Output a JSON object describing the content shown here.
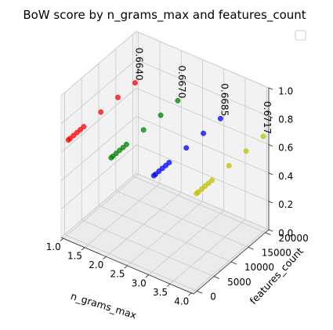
{
  "chart_data": {
    "type": "scatter",
    "projection": "3d",
    "title": "BoW score by n_grams_max and features_count",
    "xlabel": "n_grams_max",
    "ylabel": "features_count",
    "zlabel": "",
    "xlim": [
      0.95,
      4.05
    ],
    "ylim": [
      -1000,
      21000
    ],
    "zlim": [
      0,
      1
    ],
    "xticks": [
      "1.0",
      "1.5",
      "2.0",
      "2.5",
      "3.0",
      "3.5",
      "4.0"
    ],
    "yticks": [
      "0",
      "5000",
      "10000",
      "15000",
      "20000"
    ],
    "zticks": [
      "0.0",
      "0.2",
      "0.4",
      "0.6",
      "0.8",
      "1.0"
    ],
    "grid": true,
    "legend": "top-right (empty)",
    "series": [
      {
        "color": "#ff0000",
        "points": [
          [
            1,
            500,
            0.663
          ],
          [
            1,
            1000,
            0.663
          ],
          [
            1,
            2000,
            0.663
          ],
          [
            1,
            3000,
            0.664
          ],
          [
            1,
            4000,
            0.663
          ],
          [
            1,
            5000,
            0.664
          ],
          [
            1,
            10000,
            0.664
          ],
          [
            1,
            15000,
            0.664
          ],
          [
            1,
            20000,
            0.664
          ]
        ]
      },
      {
        "color": "#008000",
        "points": [
          [
            2,
            500,
            0.666
          ],
          [
            2,
            1000,
            0.666
          ],
          [
            2,
            2000,
            0.666
          ],
          [
            2,
            3000,
            0.667
          ],
          [
            2,
            4000,
            0.666
          ],
          [
            2,
            5000,
            0.667
          ],
          [
            2,
            10000,
            0.667
          ],
          [
            2,
            15000,
            0.667
          ],
          [
            2,
            20000,
            0.667
          ]
        ]
      },
      {
        "color": "#0000ff",
        "points": [
          [
            3,
            500,
            0.668
          ],
          [
            3,
            1000,
            0.668
          ],
          [
            3,
            2000,
            0.668
          ],
          [
            3,
            3000,
            0.668
          ],
          [
            3,
            4000,
            0.668
          ],
          [
            3,
            5000,
            0.668
          ],
          [
            3,
            10000,
            0.668
          ],
          [
            3,
            15000,
            0.668
          ],
          [
            3,
            20000,
            0.6685
          ]
        ]
      },
      {
        "color": "#bfbf00",
        "points": [
          [
            4,
            500,
            0.67
          ],
          [
            4,
            1000,
            0.67
          ],
          [
            4,
            2000,
            0.671
          ],
          [
            4,
            3000,
            0.671
          ],
          [
            4,
            4000,
            0.671
          ],
          [
            4,
            5000,
            0.671
          ],
          [
            4,
            10000,
            0.671
          ],
          [
            4,
            15000,
            0.671
          ],
          [
            4,
            20000,
            0.6717
          ]
        ]
      }
    ],
    "annotations": [
      {
        "text": "0.6640",
        "x": 1,
        "y": 20000,
        "z": 0.664
      },
      {
        "text": "0.6670",
        "x": 2,
        "y": 20000,
        "z": 0.667
      },
      {
        "text": "0.6685",
        "x": 3,
        "y": 20000,
        "z": 0.6685
      },
      {
        "text": "0.6717",
        "x": 4,
        "y": 20000,
        "z": 0.6717
      }
    ]
  }
}
